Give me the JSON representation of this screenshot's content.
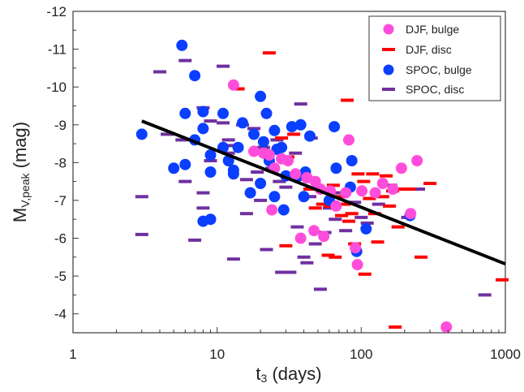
{
  "chart_data": {
    "type": "scatter",
    "xscale": "log",
    "xlim": [
      1,
      1000
    ],
    "ylim": [
      -3.5,
      -12
    ],
    "y_inverted": true,
    "grid": false,
    "legend_position": "top-right",
    "x_ticks": [
      "1",
      "10",
      "100",
      "1000"
    ],
    "y_ticks": [
      "-4",
      "-5",
      "-6",
      "-7",
      "-8",
      "-9",
      "-10",
      "-11",
      "-12"
    ],
    "xlabel_main": "t",
    "xlabel_sub": "3",
    "xlabel_rest": " (days)",
    "ylabel_main": "M",
    "ylabel_sub": "V,peak",
    "ylabel_rest": " (mag)",
    "fit_line": {
      "x": [
        3,
        1000
      ],
      "y": [
        -9.1,
        -5.32
      ],
      "color": "#000000"
    },
    "series": [
      {
        "name": "DJF, bulge",
        "marker": "circle",
        "color": "#ff4ddb",
        "points": [
          [
            13,
            -10.05
          ],
          [
            18,
            -8.3
          ],
          [
            21,
            -8.25
          ],
          [
            23,
            -8.2
          ],
          [
            25,
            -7.85
          ],
          [
            24,
            -6.75
          ],
          [
            28,
            -8.1
          ],
          [
            31,
            -8.05
          ],
          [
            35,
            -7.7
          ],
          [
            38,
            -6.0
          ],
          [
            42,
            -7.6
          ],
          [
            48,
            -7.5
          ],
          [
            47,
            -6.2
          ],
          [
            52,
            -7.3
          ],
          [
            55,
            -6.05
          ],
          [
            61,
            -7.25
          ],
          [
            67,
            -6.85
          ],
          [
            78,
            -7.2
          ],
          [
            82,
            -8.6
          ],
          [
            91,
            -5.75
          ],
          [
            94,
            -5.3
          ],
          [
            101,
            -7.25
          ],
          [
            125,
            -7.2
          ],
          [
            141,
            -7.45
          ],
          [
            166,
            -7.3
          ],
          [
            190,
            -7.85
          ],
          [
            220,
            -6.65
          ],
          [
            244,
            -8.05
          ],
          [
            390,
            -3.65
          ]
        ]
      },
      {
        "name": "DJF, disc",
        "marker": "dash",
        "color": "#ff0000",
        "points": [
          [
            14,
            -9.95
          ],
          [
            23,
            -10.9
          ],
          [
            28,
            -8.65
          ],
          [
            31,
            -8.15
          ],
          [
            34,
            -8.75
          ],
          [
            30,
            -5.8
          ],
          [
            44,
            -7.3
          ],
          [
            48,
            -6.8
          ],
          [
            54,
            -6.9
          ],
          [
            59,
            -5.55
          ],
          [
            61,
            -6.85
          ],
          [
            64,
            -7.4
          ],
          [
            66,
            -5.5
          ],
          [
            69,
            -7.1
          ],
          [
            73,
            -6.6
          ],
          [
            76,
            -6.9
          ],
          [
            80,
            -9.65
          ],
          [
            82,
            -6.45
          ],
          [
            86,
            -6.65
          ],
          [
            90,
            -5.85
          ],
          [
            95,
            -7.7
          ],
          [
            104,
            -7.5
          ],
          [
            106,
            -5.05
          ],
          [
            114,
            -7.05
          ],
          [
            120,
            -7.7
          ],
          [
            124,
            -6.65
          ],
          [
            130,
            -5.9
          ],
          [
            141,
            -7.1
          ],
          [
            149,
            -7.65
          ],
          [
            157,
            -6.85
          ],
          [
            165,
            -7.25
          ],
          [
            172,
            -3.65
          ],
          [
            180,
            -6.3
          ],
          [
            195,
            -7.3
          ],
          [
            215,
            -7.3
          ],
          [
            260,
            -5.5
          ],
          [
            300,
            -7.45
          ],
          [
            950,
            -4.9
          ]
        ]
      },
      {
        "name": "SPOC, bulge",
        "marker": "circle",
        "color": "#0b3fff",
        "points": [
          [
            3,
            -8.75
          ],
          [
            5,
            -7.85
          ],
          [
            5.7,
            -11.1
          ],
          [
            6,
            -9.3
          ],
          [
            6,
            -7.95
          ],
          [
            7,
            -10.3
          ],
          [
            7,
            -8.6
          ],
          [
            8,
            -9.35
          ],
          [
            8,
            -8.9
          ],
          [
            8,
            -6.45
          ],
          [
            9,
            -8.2
          ],
          [
            9,
            -7.75
          ],
          [
            9,
            -6.5
          ],
          [
            11,
            -9.3
          ],
          [
            11,
            -8.4
          ],
          [
            12,
            -8.05
          ],
          [
            13,
            -7.8
          ],
          [
            13,
            -7.7
          ],
          [
            14,
            -8.4
          ],
          [
            15,
            -9.05
          ],
          [
            17,
            -7.2
          ],
          [
            18,
            -8.75
          ],
          [
            20,
            -9.75
          ],
          [
            20,
            -7.45
          ],
          [
            21,
            -8.55
          ],
          [
            22,
            -9.3
          ],
          [
            23,
            -8.05
          ],
          [
            25,
            -8.85
          ],
          [
            25,
            -7.1
          ],
          [
            26,
            -8.35
          ],
          [
            28,
            -8.4
          ],
          [
            29,
            -6.75
          ],
          [
            30,
            -7.65
          ],
          [
            33,
            -8.95
          ],
          [
            37,
            -7.65
          ],
          [
            38,
            -9.0
          ],
          [
            40,
            -7.1
          ],
          [
            41,
            -7.75
          ],
          [
            44,
            -8.7
          ],
          [
            60,
            -7.0
          ],
          [
            65,
            -8.95
          ],
          [
            67,
            -7.85
          ],
          [
            84,
            -7.35
          ],
          [
            86,
            -8.05
          ],
          [
            93,
            -5.65
          ],
          [
            108,
            -6.25
          ],
          [
            218,
            -6.6
          ]
        ]
      },
      {
        "name": "SPOC, disc",
        "marker": "dash",
        "color": "#7030a0",
        "points": [
          [
            3,
            -7.1
          ],
          [
            3,
            -6.1
          ],
          [
            4,
            -10.4
          ],
          [
            4.5,
            -8.75
          ],
          [
            5.7,
            -8.6
          ],
          [
            6,
            -7.5
          ],
          [
            6,
            -10.7
          ],
          [
            7,
            -5.95
          ],
          [
            8,
            -9.45
          ],
          [
            8,
            -7.2
          ],
          [
            8,
            -6.8
          ],
          [
            9,
            -8.05
          ],
          [
            9,
            -9.1
          ],
          [
            11,
            -10.55
          ],
          [
            11,
            -9.05
          ],
          [
            12,
            -8.6
          ],
          [
            12,
            -8.25
          ],
          [
            13,
            -8.45
          ],
          [
            13,
            -5.45
          ],
          [
            15,
            -9.0
          ],
          [
            16,
            -7.55
          ],
          [
            16,
            -6.65
          ],
          [
            18,
            -8.9
          ],
          [
            19,
            -7.75
          ],
          [
            20,
            -7.0
          ],
          [
            21,
            -8.4
          ],
          [
            22,
            -5.7
          ],
          [
            24,
            -7.85
          ],
          [
            26,
            -8.6
          ],
          [
            27,
            -7.5
          ],
          [
            28,
            -5.1
          ],
          [
            30,
            -7.35
          ],
          [
            32,
            -5.1
          ],
          [
            35,
            -8.25
          ],
          [
            36,
            -6.3
          ],
          [
            38,
            -9.55
          ],
          [
            40,
            -5.5
          ],
          [
            42,
            -5.35
          ],
          [
            44,
            -7.1
          ],
          [
            45,
            -8.65
          ],
          [
            48,
            -5.85
          ],
          [
            52,
            -4.65
          ],
          [
            56,
            -6.15
          ],
          [
            60,
            -6.8
          ],
          [
            66,
            -6.5
          ],
          [
            70,
            -7.2
          ],
          [
            78,
            -6.2
          ],
          [
            90,
            -6.95
          ],
          [
            100,
            -6.55
          ],
          [
            110,
            -6.4
          ],
          [
            132,
            -6.9
          ],
          [
            160,
            -7.4
          ],
          [
            210,
            -6.55
          ],
          [
            250,
            -7.3
          ],
          [
            720,
            -4.5
          ]
        ]
      }
    ]
  }
}
